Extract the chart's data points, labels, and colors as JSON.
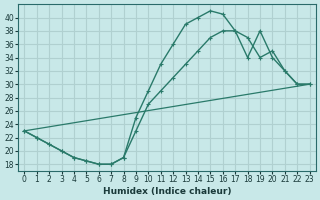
{
  "xlabel": "Humidex (Indice chaleur)",
  "bg_color": "#c8e8e8",
  "grid_color": "#b0d0d0",
  "line_color": "#2a7a6a",
  "xlim": [
    -0.5,
    23.5
  ],
  "ylim": [
    17,
    42
  ],
  "xticks": [
    0,
    1,
    2,
    3,
    4,
    5,
    6,
    7,
    8,
    9,
    10,
    11,
    12,
    13,
    14,
    15,
    16,
    17,
    18,
    19,
    20,
    21,
    22,
    23
  ],
  "yticks": [
    18,
    20,
    22,
    24,
    26,
    28,
    30,
    32,
    34,
    36,
    38,
    40
  ],
  "line1_x": [
    0,
    1,
    2,
    3,
    4,
    5,
    6,
    7,
    8,
    9,
    10,
    11,
    12,
    13,
    14,
    15,
    16,
    17,
    18,
    19,
    20,
    21,
    22,
    23
  ],
  "line1_y": [
    23,
    22,
    21,
    20,
    19,
    18.5,
    18,
    18,
    19,
    25,
    29,
    33,
    36,
    39,
    40,
    41,
    40.5,
    38,
    34,
    38,
    34,
    32,
    30,
    30
  ],
  "line2_x": [
    0,
    1,
    2,
    3,
    4,
    5,
    6,
    7,
    8,
    9,
    10,
    11,
    12,
    13,
    14,
    15,
    16,
    17,
    18,
    19,
    20,
    21,
    22,
    23
  ],
  "line2_y": [
    23,
    22,
    21,
    20,
    19,
    18.5,
    18,
    18,
    19,
    23,
    27,
    29,
    31,
    33,
    35,
    37,
    38,
    38,
    37,
    34,
    35,
    32,
    30,
    30
  ],
  "line3_x": [
    0,
    23
  ],
  "line3_y": [
    23,
    30
  ]
}
